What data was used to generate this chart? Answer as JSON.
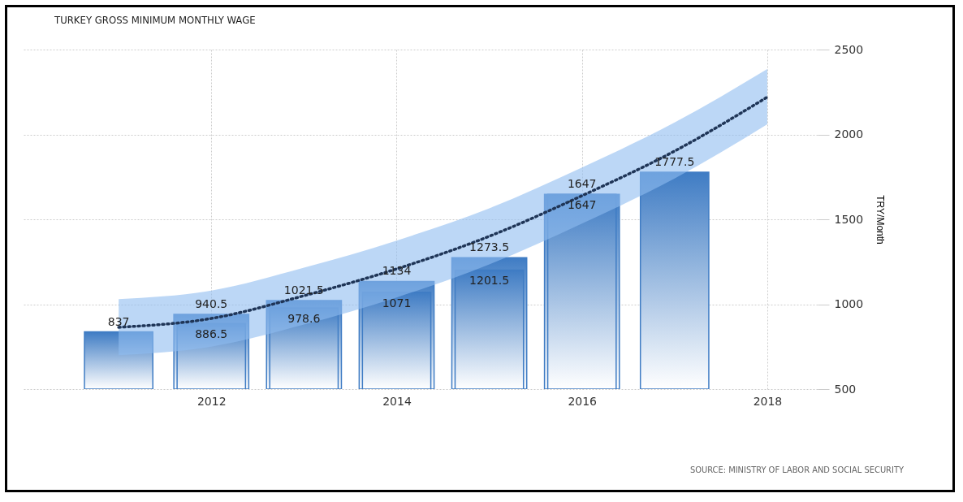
{
  "chart_data": {
    "type": "bar",
    "title": "TURKEY GROSS MINIMUM MONTHLY WAGE",
    "ylabel": "TRY/Month",
    "annotations": [
      "SOURCE: MINISTRY OF LABOR AND SOCIAL SECURITY"
    ],
    "x": [
      2011,
      2012,
      2013,
      2014,
      2015,
      2016,
      2017
    ],
    "series": [
      {
        "color": "#3f7cc4",
        "values": [
          null,
          940.5,
          1021.5,
          1134,
          1273.5,
          1647,
          null
        ],
        "value_labels": [
          null,
          "940.5",
          "1021.5",
          "1134",
          "1273.5",
          "1647",
          null
        ]
      },
      {
        "color": "#3f7cc4",
        "values": [
          837,
          886.5,
          978.6,
          1071,
          1201.5,
          1647,
          1777.5
        ],
        "value_labels": [
          "837",
          "886.5",
          "978.6",
          "1071",
          "1201.5",
          "1647",
          "1777.5"
        ]
      },
      {
        "type": "line",
        "color": "#1f3557",
        "x": [
          2011,
          2012,
          2013,
          2014,
          2015,
          2016,
          2017,
          2018
        ],
        "values": [
          864,
          916,
          1050,
          1208,
          1400,
          1639,
          1902,
          2220
        ],
        "lower": [
          700,
          750,
          880,
          1040,
          1235,
          1475,
          1740,
          2060
        ],
        "upper": [
          1030,
          1080,
          1215,
          1375,
          1565,
          1805,
          2070,
          2385
        ]
      }
    ],
    "xlim": [
      2010,
      2018.5
    ],
    "xticks": [
      2012,
      2014,
      2016,
      2018
    ],
    "ylim": [
      500,
      2500
    ],
    "yticks": [
      500,
      1000,
      1500,
      2000,
      2500
    ],
    "grid": true,
    "line_style": "dotted"
  }
}
